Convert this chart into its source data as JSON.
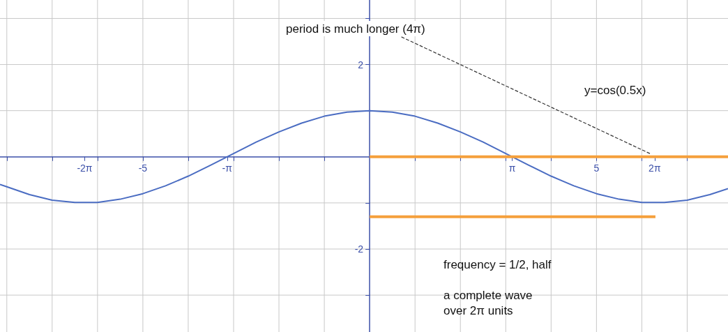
{
  "chart_data": {
    "type": "line",
    "series": [
      {
        "color": "#4a6cc2",
        "x": [
          -8.15,
          -8,
          -7.5,
          -7,
          -6.5,
          -6,
          -5.5,
          -5,
          -4.5,
          -4,
          -3.5,
          -3,
          -2.5,
          -2,
          -1.5,
          -1,
          -0.5,
          0,
          0.5,
          1,
          1.5,
          2,
          2.5,
          3,
          3.5,
          4,
          4.5,
          5,
          5.5,
          6,
          6.5,
          7,
          7.5,
          7.9
        ],
        "values": [
          -0.6,
          -0.65,
          -0.82,
          -0.94,
          -0.99,
          -0.99,
          -0.92,
          -0.8,
          -0.63,
          -0.42,
          -0.18,
          0.07,
          0.32,
          0.54,
          0.73,
          0.88,
          0.97,
          1,
          0.97,
          0.88,
          0.73,
          0.54,
          0.32,
          0.07,
          -0.18,
          -0.42,
          -0.63,
          -0.8,
          -0.92,
          -0.99,
          -0.99,
          -0.94,
          -0.82,
          -0.69
        ]
      },
      {
        "color": "#f5a03c",
        "x": [
          0,
          7.9
        ],
        "values": [
          0,
          0
        ]
      },
      {
        "color": "#f5a03c",
        "x": [
          0,
          6.3
        ],
        "values": [
          -1.3,
          -1.3
        ]
      },
      {
        "color": "#333333",
        "x": [
          0.7,
          6.2
        ],
        "values": [
          2.6,
          0.06
        ],
        "line_style": "dashed"
      }
    ],
    "xlim": [
      -8.15,
      7.9
    ],
    "ylim": [
      -3.8,
      3.4
    ],
    "xticks": [
      {
        "value": -8,
        "label": null
      },
      {
        "value": -7,
        "label": null
      },
      {
        "value": -6.283,
        "label": "-2π"
      },
      {
        "value": -6,
        "label": null
      },
      {
        "value": -5,
        "label": "-5"
      },
      {
        "value": -4,
        "label": null
      },
      {
        "value": -3.142,
        "label": "-π"
      },
      {
        "value": -3,
        "label": null
      },
      {
        "value": -2,
        "label": null
      },
      {
        "value": -1,
        "label": null
      },
      {
        "value": 1,
        "label": null
      },
      {
        "value": 2,
        "label": null
      },
      {
        "value": 3,
        "label": null
      },
      {
        "value": 3.142,
        "label": "π"
      },
      {
        "value": 4,
        "label": null
      },
      {
        "value": 5,
        "label": "5"
      },
      {
        "value": 6,
        "label": null
      },
      {
        "value": 6.283,
        "label": "2π"
      },
      {
        "value": 7,
        "label": null
      }
    ],
    "yticks": [
      {
        "value": -3,
        "label": null
      },
      -2,
      {
        "value": -1,
        "label": null
      },
      {
        "value": 1,
        "label": null
      },
      2,
      {
        "value": 3,
        "label": null
      }
    ],
    "grid": true,
    "marker": "none",
    "line_style": "solid",
    "annotations": [
      "period is much longer (4π)",
      "y=cos(0.5x)",
      "frequency = 1/2, half",
      "a complete wave\nover 2π units"
    ]
  }
}
